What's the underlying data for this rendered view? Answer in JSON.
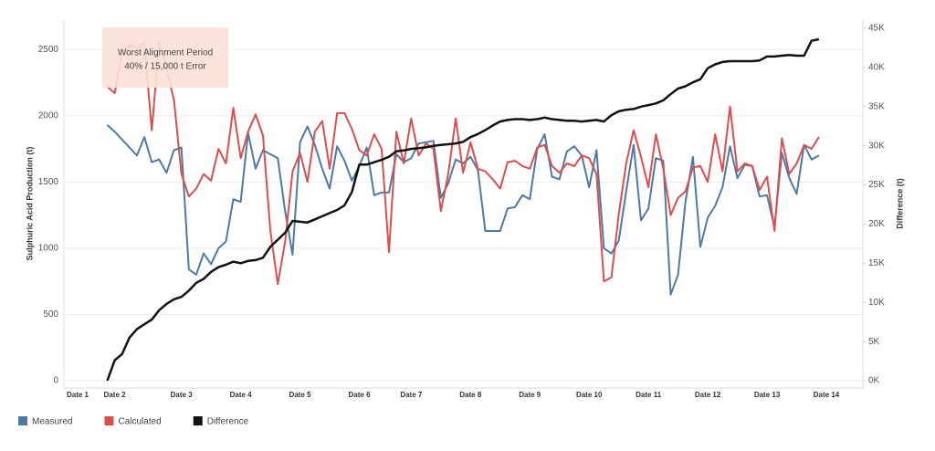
{
  "chart_data": {
    "type": "line",
    "annotation": {
      "title": "Worst Alignment Period",
      "text": "40% / 15,000 t Error"
    },
    "y_label": "Sulphuric Acid Production (t)",
    "y2_label": "Difference (t)",
    "categories": [
      "Date 1",
      null,
      null,
      null,
      null,
      "Date 2",
      null,
      null,
      null,
      null,
      null,
      null,
      null,
      null,
      "Date 3",
      null,
      null,
      null,
      null,
      null,
      null,
      null,
      "Date 4",
      null,
      null,
      null,
      null,
      null,
      null,
      null,
      "Date 5",
      null,
      null,
      null,
      null,
      null,
      null,
      null,
      "Date 6",
      null,
      null,
      null,
      null,
      null,
      null,
      "Date 7",
      null,
      null,
      null,
      null,
      null,
      null,
      null,
      "Date 8",
      null,
      null,
      null,
      null,
      null,
      null,
      null,
      "Date 9",
      null,
      null,
      null,
      null,
      null,
      null,
      null,
      "Date 10",
      null,
      null,
      null,
      null,
      null,
      null,
      null,
      "Date 11",
      null,
      null,
      null,
      null,
      null,
      null,
      null,
      "Date 12",
      null,
      null,
      null,
      null,
      null,
      null,
      null,
      "Date 13",
      null,
      null,
      null,
      null,
      null,
      null,
      null,
      "Date 14"
    ],
    "ylim": [
      0,
      2660
    ],
    "yticks": [
      0,
      500,
      1000,
      1500,
      2000,
      2500
    ],
    "y2lim": [
      0,
      45000
    ],
    "y2ticks": [
      {
        "value": 0,
        "label": "0K"
      },
      {
        "value": 5000,
        "label": "5K"
      },
      {
        "value": 10000,
        "label": "10K"
      },
      {
        "value": 15000,
        "label": "15K"
      },
      {
        "value": 20000,
        "label": "20K"
      },
      {
        "value": 25000,
        "label": "25K"
      },
      {
        "value": 30000,
        "label": "30K"
      },
      {
        "value": 35000,
        "label": "35K"
      },
      {
        "value": 40000,
        "label": "40K"
      },
      {
        "value": 45000,
        "label": "45K"
      }
    ],
    "grid": true,
    "series": [
      {
        "name": "Measured",
        "color": "#4e79a7",
        "values": [
          null,
          null,
          null,
          null,
          1930,
          1880,
          1820,
          1760,
          1700,
          1840,
          1650,
          1670,
          1570,
          1740,
          1760,
          840,
          800,
          960,
          880,
          1000,
          1050,
          1370,
          1350,
          1870,
          1600,
          1740,
          1710,
          1680,
          1280,
          950,
          1800,
          1920,
          1780,
          1600,
          1450,
          1770,
          1660,
          1510,
          1620,
          1760,
          1400,
          1420,
          1420,
          1710,
          1650,
          1680,
          1790,
          1800,
          1810,
          1380,
          1490,
          1670,
          1640,
          1690,
          1590,
          1130,
          1130,
          1130,
          1300,
          1310,
          1400,
          1370,
          1750,
          1860,
          1540,
          1520,
          1730,
          1770,
          1700,
          1460,
          1740,
          1000,
          960,
          1060,
          1430,
          1780,
          1210,
          1300,
          1680,
          1660,
          650,
          800,
          1350,
          1690,
          1010,
          1230,
          1320,
          1460,
          1770,
          1530,
          1630,
          1620,
          1390,
          1400,
          1160,
          1720,
          1530,
          1410,
          1780,
          1670,
          1700,
          null
        ]
      },
      {
        "name": "Calculated",
        "color": "#dc4e4e",
        "values": [
          null,
          null,
          null,
          null,
          2220,
          2170,
          2480,
          2530,
          2510,
          2550,
          1890,
          2550,
          2350,
          2120,
          1560,
          1390,
          1450,
          1560,
          1510,
          1750,
          1640,
          2060,
          1680,
          1880,
          2010,
          1850,
          1130,
          730,
          1050,
          1580,
          1720,
          1500,
          1880,
          1960,
          1600,
          2020,
          2020,
          1900,
          1740,
          1700,
          1860,
          1750,
          970,
          1880,
          1640,
          1980,
          1700,
          1790,
          1750,
          1280,
          1560,
          1980,
          1570,
          1800,
          1600,
          1580,
          1520,
          1450,
          1650,
          1660,
          1620,
          1600,
          1760,
          1780,
          1620,
          1570,
          1640,
          1620,
          1700,
          1680,
          1560,
          750,
          780,
          1260,
          1640,
          1890,
          1690,
          1460,
          1860,
          1600,
          1250,
          1380,
          1430,
          1610,
          1620,
          1500,
          1860,
          1580,
          2070,
          1580,
          1640,
          1620,
          1440,
          1540,
          1130,
          1830,
          1560,
          1640,
          1780,
          1750,
          1840,
          null
        ]
      },
      {
        "name": "Difference",
        "color": "#111111",
        "axis": "y2",
        "values": [
          null,
          null,
          null,
          null,
          0,
          2600,
          3400,
          5500,
          6600,
          7200,
          7800,
          9000,
          9800,
          10400,
          10700,
          11500,
          12500,
          13000,
          13900,
          14500,
          14800,
          15200,
          15000,
          15300,
          15400,
          15700,
          17100,
          18000,
          18900,
          20400,
          20300,
          20200,
          20600,
          21000,
          21400,
          21800,
          22400,
          24100,
          27600,
          27600,
          27900,
          28200,
          28600,
          29300,
          29400,
          29600,
          29700,
          29800,
          30000,
          30100,
          30200,
          30300,
          30500,
          31100,
          31500,
          32000,
          32600,
          33100,
          33300,
          33400,
          33400,
          33300,
          33400,
          33600,
          33400,
          33300,
          33200,
          33200,
          33100,
          33200,
          33300,
          33100,
          33900,
          34400,
          34600,
          34700,
          35000,
          35200,
          35400,
          35800,
          36600,
          37300,
          37600,
          38100,
          38500,
          39900,
          40400,
          40700,
          40800,
          40800,
          40800,
          40800,
          40900,
          41400,
          41400,
          41500,
          41600,
          41500,
          41500,
          43400,
          43600,
          null
        ]
      }
    ]
  }
}
